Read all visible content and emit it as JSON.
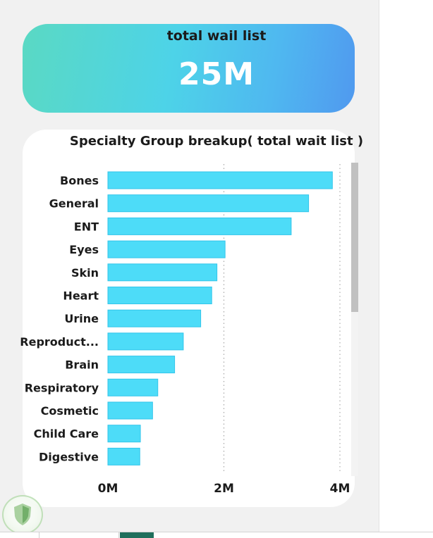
{
  "kpi": {
    "title": "total wail list",
    "value": "25M"
  },
  "chart_data": {
    "type": "bar",
    "orientation": "horizontal",
    "title": "Specialty Group breakup( total wait list )",
    "categories": [
      "Bones",
      "General",
      "ENT",
      "Eyes",
      "Skin",
      "Heart",
      "Urine",
      "Reproduct...",
      "Brain",
      "Respiratory",
      "Cosmetic",
      "Child Care",
      "Digestive"
    ],
    "values": [
      3870000,
      3460000,
      3160000,
      2020000,
      1880000,
      1790000,
      1600000,
      1300000,
      1150000,
      860000,
      770000,
      560000,
      550000
    ],
    "xticks": [
      "0M",
      "2M",
      "4M"
    ],
    "xtick_values": [
      0,
      2000000,
      4000000
    ],
    "xlim": [
      0,
      4000000
    ],
    "grid": "vertical dotted",
    "bar_color": "#4ddcf8",
    "bar_edge_color": "#33c5ea"
  },
  "colors": {
    "accent": "#4dd3e8",
    "scroll_thumb": "#c1c1c1"
  }
}
